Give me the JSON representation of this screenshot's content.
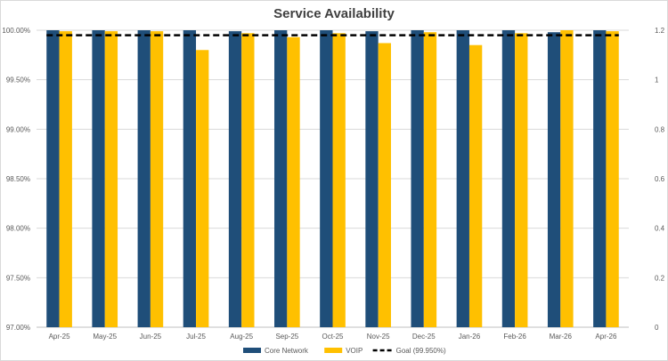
{
  "chart_data": {
    "type": "bar",
    "title": "Service Availability",
    "categories": [
      "Apr-25",
      "May-25",
      "Jun-25",
      "Jul-25",
      "Aug-25",
      "Sep-25",
      "Oct-25",
      "Nov-25",
      "Dec-25",
      "Jan-26",
      "Feb-26",
      "Mar-26",
      "Apr-26"
    ],
    "series": [
      {
        "name": "Core Network",
        "color": "#1f4e79",
        "values": [
          100.0,
          100.0,
          100.0,
          100.0,
          99.99,
          100.0,
          100.0,
          99.99,
          100.0,
          100.0,
          100.0,
          99.98,
          100.0
        ]
      },
      {
        "name": "VOIP",
        "color": "#ffc000",
        "values": [
          99.99,
          99.99,
          99.99,
          99.8,
          99.97,
          99.93,
          99.97,
          99.87,
          99.98,
          99.85,
          99.97,
          100.0,
          99.99
        ]
      },
      {
        "name": "Goal (99.950%)",
        "type": "line",
        "style": "dashed",
        "color": "#000000",
        "value": 99.95
      }
    ],
    "ylim": [
      97.0,
      100.0
    ],
    "yticks": [
      "97.00%",
      "97.50%",
      "98.00%",
      "98.50%",
      "99.00%",
      "99.50%",
      "100.00%"
    ],
    "y2lim": [
      0,
      1.2
    ],
    "y2ticks": [
      "0",
      "0.2",
      "0.4",
      "0.6",
      "0.8",
      "1",
      "1.2"
    ],
    "grid": true,
    "legend": "bottom-center"
  }
}
